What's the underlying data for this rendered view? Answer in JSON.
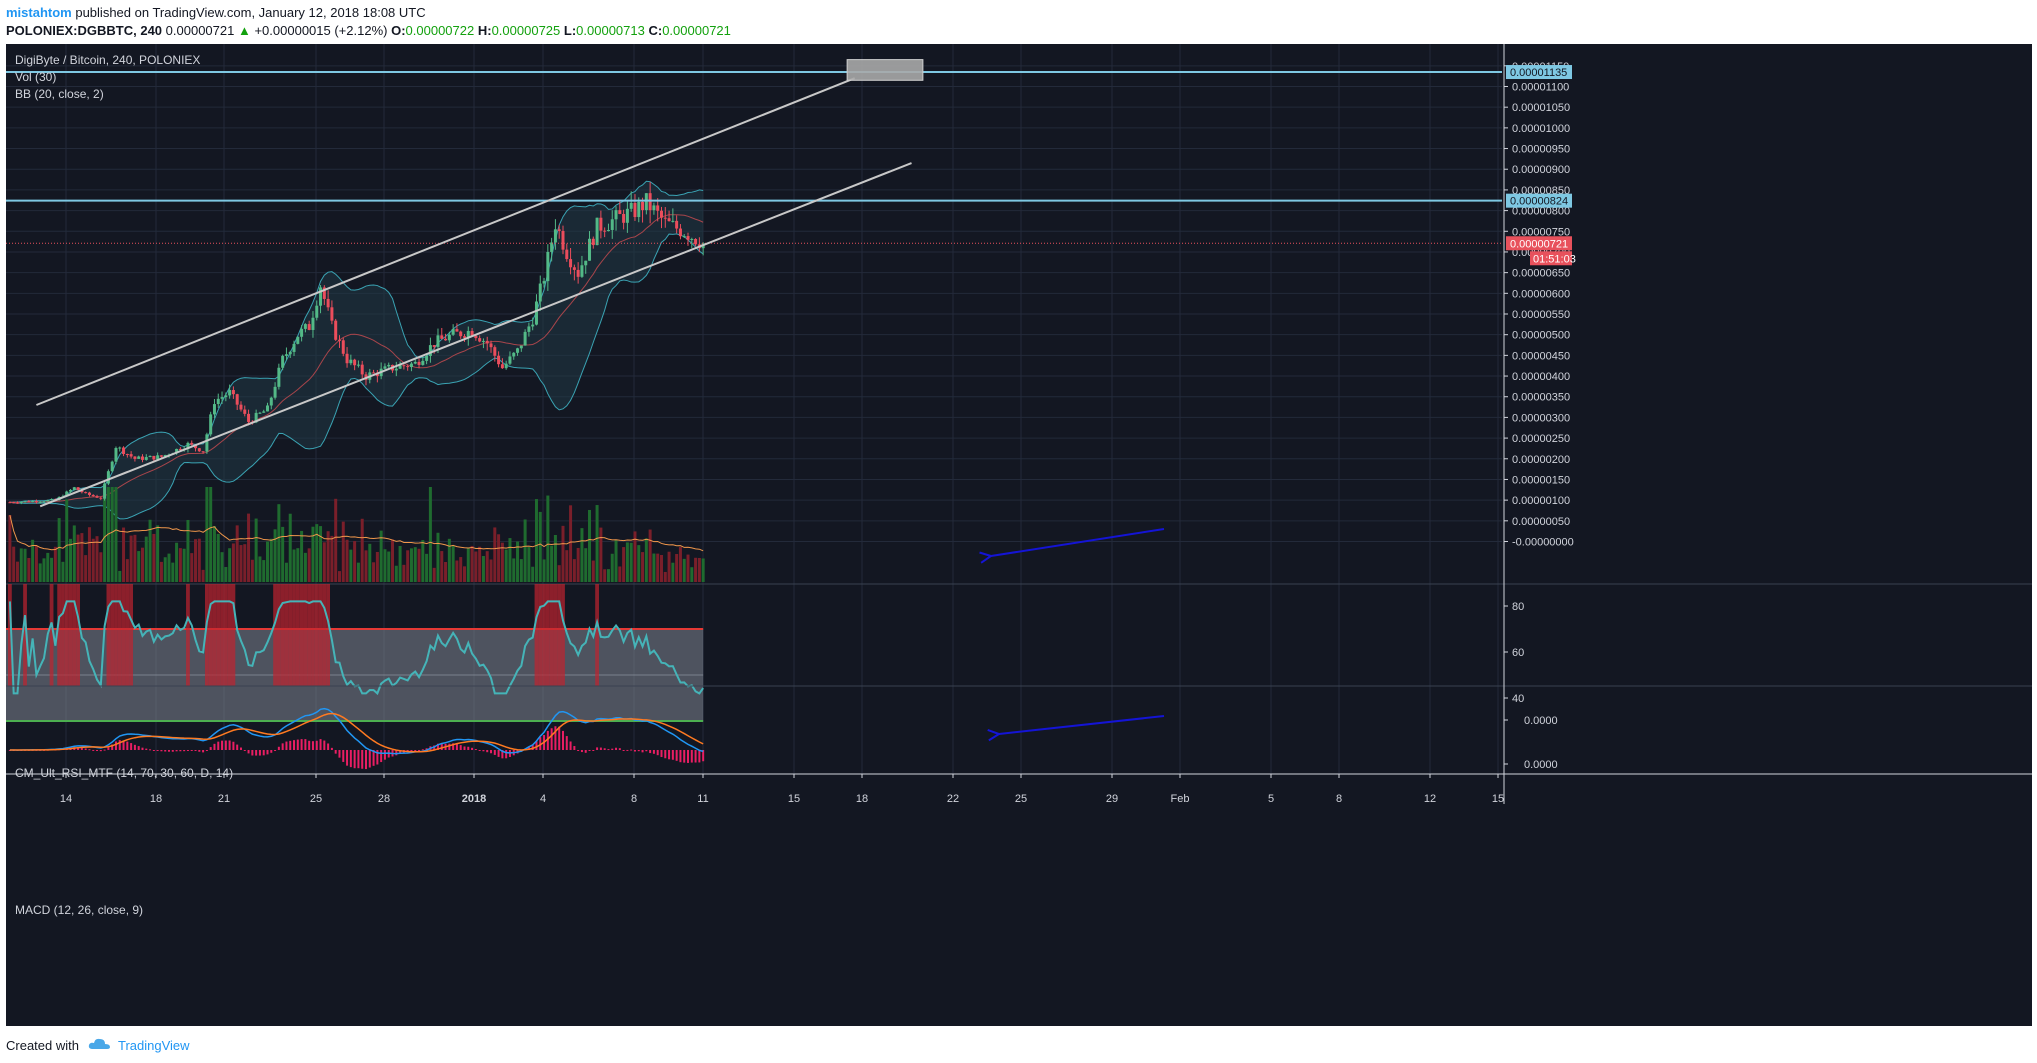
{
  "header": {
    "author": "mistahtom",
    "published": " published on TradingView.com, January 12, 2018 18:08 UTC",
    "symbol": "POLONIEX:DGBBTC, 240",
    "last": "0.00000721",
    "change_arrow": "▲",
    "change": "+0.00000015 (+2.12%)",
    "o_label": "O:",
    "o_value": "0.00000722",
    "h_label": "H:",
    "h_value": "0.00000725",
    "l_label": "L:",
    "l_value": "0.00000713",
    "c_label": "C:",
    "c_value": "0.00000721"
  },
  "legend": {
    "title": "DigiByte / Bitcoin, 240, POLONIEX",
    "vol": "Vol (30)",
    "bb": "BB (20, close, 2)",
    "rsi": "CM_Ult_RSI_MTF (14, 70, 30, 60, D, 14)",
    "macd": "MACD (12, 26, close, 9)"
  },
  "price_axis": {
    "ticks": [
      "0.00001150",
      "0.00001100",
      "0.00001050",
      "0.00001000",
      "0.00000950",
      "0.00000900",
      "0.00000850",
      "0.00000800",
      "0.00000750",
      "0.00000700",
      "0.00000650",
      "0.00000600",
      "0.00000550",
      "0.00000500",
      "0.00000450",
      "0.00000400",
      "0.00000350",
      "0.00000300",
      "0.00000250",
      "0.00000200",
      "0.00000150",
      "0.00000100",
      "0.00000050",
      "-0.00000000"
    ],
    "tick_values": [
      1150,
      1100,
      1050,
      1000,
      950,
      900,
      850,
      800,
      750,
      700,
      650,
      600,
      550,
      500,
      450,
      400,
      350,
      300,
      250,
      200,
      150,
      100,
      50,
      0
    ],
    "resistance_high": "0.00001135",
    "resistance_high_value": 1135,
    "resistance_mid": "0.00000824",
    "resistance_mid_value": 824,
    "last_price": "0.00000721",
    "last_price_value": 721,
    "countdown": "01:51:03"
  },
  "rsi_axis": {
    "ticks": [
      "80",
      "60",
      "40"
    ],
    "tick_values": [
      80,
      60,
      40
    ],
    "upper": 70,
    "lower": 30
  },
  "macd_axis": {
    "ticks": [
      "0.0000",
      "0.0000"
    ]
  },
  "time_axis": {
    "labels": [
      "14",
      "18",
      "21",
      "25",
      "28",
      "2018",
      "4",
      "8",
      "11",
      "15",
      "18",
      "22",
      "25",
      "29",
      "Feb",
      "5",
      "8",
      "12",
      "15"
    ],
    "bold": [
      "2018"
    ]
  },
  "colors": {
    "background": "#131722",
    "grid": "#232a3a",
    "candle_up": "#53b987",
    "candle_down": "#eb4d5c",
    "bb_line": "#3aa3b3",
    "bb_fill": "#203945",
    "bb_basis": "#a8454b",
    "vol_up": "#1f6b2f",
    "vol_down": "#7a1f2a",
    "vol_ma": "#f0974b",
    "resistance": "#7ec8e3",
    "channel": "#c8c8c8",
    "rsi_line": "#45b4b8",
    "rsi_band": "#7f8591",
    "rsi_upper": "#e53935",
    "rsi_lower": "#4caf50",
    "rsi_highlight": "#c0242f",
    "macd_line": "#2196f3",
    "signal_line": "#ff7a21",
    "macd_hist": "#e91e63",
    "arrow": "#1414d6",
    "last_price_tag": "#e8515c"
  },
  "chart_data": {
    "type": "candlestick",
    "title": "DigiByte / Bitcoin, 240, POLONIEX",
    "x_axis_ticks": [
      "14",
      "18",
      "21",
      "25",
      "28",
      "2018",
      "4",
      "8",
      "11",
      "15",
      "18",
      "22",
      "25",
      "29",
      "Feb",
      "5",
      "8",
      "12",
      "15"
    ],
    "y_unit": "BTC (x1e-8 in close_path)",
    "price_range": [
      -25,
      1175
    ],
    "close_path": [
      {
        "t": 0,
        "v": 95
      },
      {
        "t": 12,
        "v": 100
      },
      {
        "t": 17,
        "v": 130
      },
      {
        "t": 20,
        "v": 115
      },
      {
        "t": 24,
        "v": 105
      },
      {
        "t": 28,
        "v": 230
      },
      {
        "t": 33,
        "v": 200
      },
      {
        "t": 40,
        "v": 205
      },
      {
        "t": 47,
        "v": 235
      },
      {
        "t": 51,
        "v": 220
      },
      {
        "t": 54,
        "v": 340
      },
      {
        "t": 58,
        "v": 360
      },
      {
        "t": 63,
        "v": 290
      },
      {
        "t": 68,
        "v": 320
      },
      {
        "t": 72,
        "v": 440
      },
      {
        "t": 76,
        "v": 500
      },
      {
        "t": 79,
        "v": 520
      },
      {
        "t": 82,
        "v": 620
      },
      {
        "t": 85,
        "v": 520
      },
      {
        "t": 89,
        "v": 440
      },
      {
        "t": 94,
        "v": 400
      },
      {
        "t": 101,
        "v": 420
      },
      {
        "t": 107,
        "v": 430
      },
      {
        "t": 112,
        "v": 480
      },
      {
        "t": 117,
        "v": 500
      },
      {
        "t": 122,
        "v": 510
      },
      {
        "t": 126,
        "v": 480
      },
      {
        "t": 130,
        "v": 420
      },
      {
        "t": 134,
        "v": 460
      },
      {
        "t": 138,
        "v": 540
      },
      {
        "t": 141,
        "v": 640
      },
      {
        "t": 144,
        "v": 770
      },
      {
        "t": 147,
        "v": 700
      },
      {
        "t": 150,
        "v": 650
      },
      {
        "t": 155,
        "v": 760
      },
      {
        "t": 160,
        "v": 780
      },
      {
        "t": 165,
        "v": 800
      },
      {
        "t": 168,
        "v": 820
      },
      {
        "t": 173,
        "v": 770
      },
      {
        "t": 178,
        "v": 750
      },
      {
        "t": 183,
        "v": 721
      }
    ],
    "bars_total": 184,
    "resistance_levels": [
      1135,
      824
    ],
    "channel_upper": {
      "from": {
        "t": 7,
        "v": 330
      },
      "to": {
        "t": 223,
        "v": 1120
      }
    },
    "channel_lower": {
      "from": {
        "t": 8,
        "v": 85
      },
      "to": {
        "t": 238,
        "v": 915
      }
    },
    "target_box": {
      "from": {
        "t": 221,
        "v": 1115
      },
      "to": {
        "t": 241,
        "v": 1165
      }
    },
    "rsi": {
      "upper": 70,
      "lower": 30,
      "overbought_color": "red",
      "oversold_color": "green"
    }
  }
}
